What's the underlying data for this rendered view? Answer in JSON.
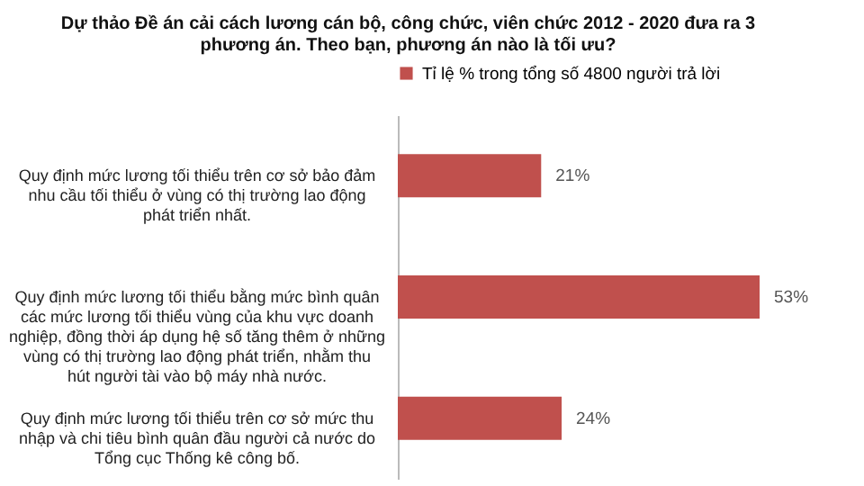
{
  "chart_data": {
    "type": "bar",
    "orientation": "horizontal",
    "title": "Dự thảo Đề án cải cách lương cán bộ, công chức, viên chức 2012 - 2020 đưa ra 3 phương án. Theo bạn, phương án nào là tối ưu?",
    "categories": [
      "Quy định mức lương tối thiểu trên cơ sở bảo đảm nhu cầu tối thiểu ở vùng có thị trường lao động phát triển nhất.",
      "Quy định mức lương tối thiểu bằng mức bình quân các mức lương tối thiểu vùng của khu vực doanh nghiệp, đồng thời áp dụng hệ số tăng thêm ở những vùng có thị trường lao động phát triển, nhằm thu hút người tài vào bộ máy nhà nước.",
      "Quy định mức lương tối thiểu trên cơ sở mức thu nhập và chi tiêu bình quân đầu người cả nước do Tổng cục Thống kê công bố."
    ],
    "series": [
      {
        "name": "Tỉ lệ % trong tổng số 4800 người trả lời",
        "color": "#c0504d",
        "values": [
          21,
          53,
          24
        ],
        "value_labels": [
          "21%",
          "53%",
          "24%"
        ]
      }
    ],
    "legend": "top"
  }
}
